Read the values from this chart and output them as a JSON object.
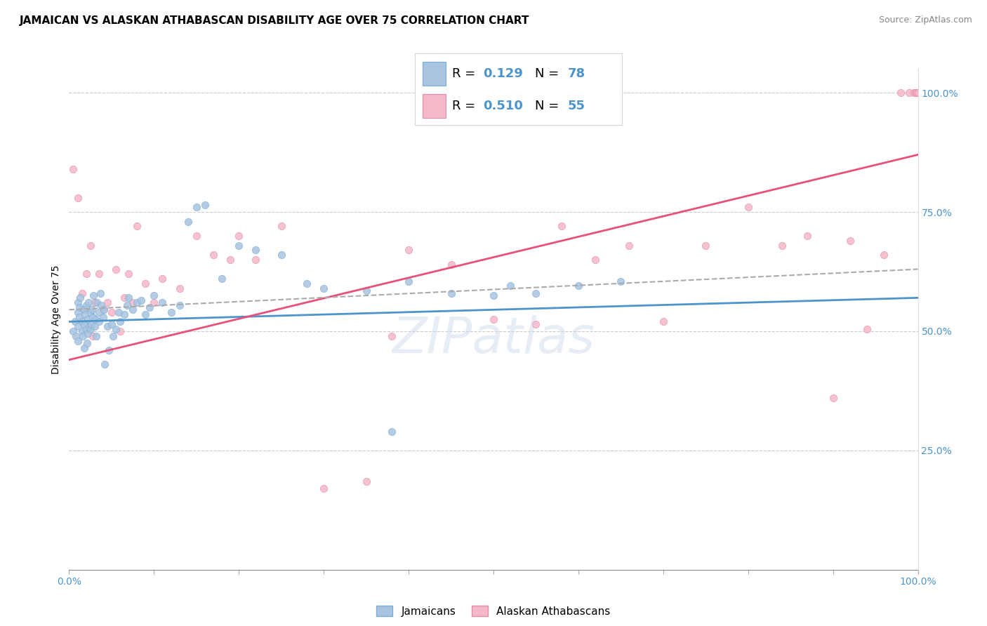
{
  "title": "JAMAICAN VS ALASKAN ATHABASCAN DISABILITY AGE OVER 75 CORRELATION CHART",
  "source": "Source: ZipAtlas.com",
  "ylabel": "Disability Age Over 75",
  "xmin": 0.0,
  "xmax": 1.0,
  "ymin": 0.0,
  "ymax": 1.05,
  "ytick_positions_right": [
    0.25,
    0.5,
    0.75,
    1.0
  ],
  "ytick_labels_right": [
    "25.0%",
    "50.0%",
    "75.0%",
    "100.0%"
  ],
  "blue_color": "#a8c4e0",
  "blue_edge_color": "#7aaed6",
  "pink_color": "#f4b8c8",
  "pink_edge_color": "#e88aaa",
  "blue_line_color": "#4d94cc",
  "pink_line_color": "#e8507a",
  "dash_line_color": "#aaaaaa",
  "title_fontsize": 11,
  "source_fontsize": 9,
  "label_fontsize": 10,
  "tick_color": "#4d94cc",
  "legend_R_blue": "0.129",
  "legend_N_blue": "78",
  "legend_R_pink": "0.510",
  "legend_N_pink": "55",
  "legend_label_blue": "Jamaicans",
  "legend_label_pink": "Alaskan Athabascans",
  "watermark": "ZIPatlas",
  "blue_scatter_x": [
    0.005,
    0.007,
    0.008,
    0.01,
    0.01,
    0.01,
    0.01,
    0.012,
    0.012,
    0.013,
    0.015,
    0.015,
    0.016,
    0.017,
    0.018,
    0.018,
    0.019,
    0.02,
    0.02,
    0.021,
    0.022,
    0.022,
    0.023,
    0.024,
    0.025,
    0.025,
    0.026,
    0.027,
    0.028,
    0.029,
    0.03,
    0.031,
    0.032,
    0.033,
    0.035,
    0.035,
    0.037,
    0.038,
    0.04,
    0.041,
    0.042,
    0.045,
    0.047,
    0.05,
    0.052,
    0.055,
    0.058,
    0.06,
    0.065,
    0.068,
    0.07,
    0.075,
    0.08,
    0.085,
    0.09,
    0.095,
    0.1,
    0.11,
    0.12,
    0.13,
    0.14,
    0.15,
    0.16,
    0.18,
    0.2,
    0.22,
    0.25,
    0.28,
    0.3,
    0.35,
    0.4,
    0.45,
    0.5,
    0.52,
    0.55,
    0.6,
    0.65,
    0.38
  ],
  "blue_scatter_y": [
    0.5,
    0.52,
    0.49,
    0.54,
    0.51,
    0.56,
    0.48,
    0.55,
    0.53,
    0.57,
    0.5,
    0.52,
    0.49,
    0.545,
    0.515,
    0.465,
    0.535,
    0.505,
    0.555,
    0.475,
    0.525,
    0.495,
    0.56,
    0.51,
    0.54,
    0.505,
    0.515,
    0.545,
    0.53,
    0.575,
    0.51,
    0.525,
    0.49,
    0.56,
    0.54,
    0.52,
    0.58,
    0.555,
    0.53,
    0.545,
    0.43,
    0.51,
    0.46,
    0.515,
    0.49,
    0.505,
    0.54,
    0.52,
    0.535,
    0.555,
    0.57,
    0.545,
    0.56,
    0.565,
    0.535,
    0.55,
    0.575,
    0.56,
    0.54,
    0.555,
    0.73,
    0.76,
    0.765,
    0.61,
    0.68,
    0.67,
    0.66,
    0.6,
    0.59,
    0.585,
    0.605,
    0.58,
    0.575,
    0.595,
    0.58,
    0.595,
    0.605,
    0.29
  ],
  "pink_scatter_x": [
    0.005,
    0.01,
    0.015,
    0.018,
    0.02,
    0.025,
    0.028,
    0.03,
    0.035,
    0.04,
    0.045,
    0.05,
    0.055,
    0.06,
    0.065,
    0.07,
    0.075,
    0.08,
    0.09,
    0.1,
    0.11,
    0.13,
    0.15,
    0.17,
    0.19,
    0.2,
    0.22,
    0.25,
    0.3,
    0.35,
    0.38,
    0.4,
    0.45,
    0.5,
    0.55,
    0.58,
    0.62,
    0.66,
    0.7,
    0.75,
    0.8,
    0.84,
    0.87,
    0.9,
    0.92,
    0.94,
    0.96,
    0.98,
    0.99,
    0.995,
    0.997,
    0.998,
    0.999,
    1.0,
    1.0
  ],
  "pink_scatter_y": [
    0.84,
    0.78,
    0.58,
    0.545,
    0.62,
    0.68,
    0.49,
    0.56,
    0.62,
    0.545,
    0.56,
    0.54,
    0.63,
    0.5,
    0.57,
    0.62,
    0.56,
    0.72,
    0.6,
    0.56,
    0.61,
    0.59,
    0.7,
    0.66,
    0.65,
    0.7,
    0.65,
    0.72,
    0.17,
    0.185,
    0.49,
    0.67,
    0.64,
    0.525,
    0.515,
    0.72,
    0.65,
    0.68,
    0.52,
    0.68,
    0.76,
    0.68,
    0.7,
    0.36,
    0.69,
    0.505,
    0.66,
    1.0,
    1.0,
    1.0,
    1.0,
    1.0,
    1.0,
    1.0,
    1.0
  ],
  "blue_line_y_start": 0.52,
  "blue_line_y_end": 0.57,
  "pink_line_y_start": 0.44,
  "pink_line_y_end": 0.87,
  "dash_line_y_start": 0.545,
  "dash_line_y_end": 0.63
}
